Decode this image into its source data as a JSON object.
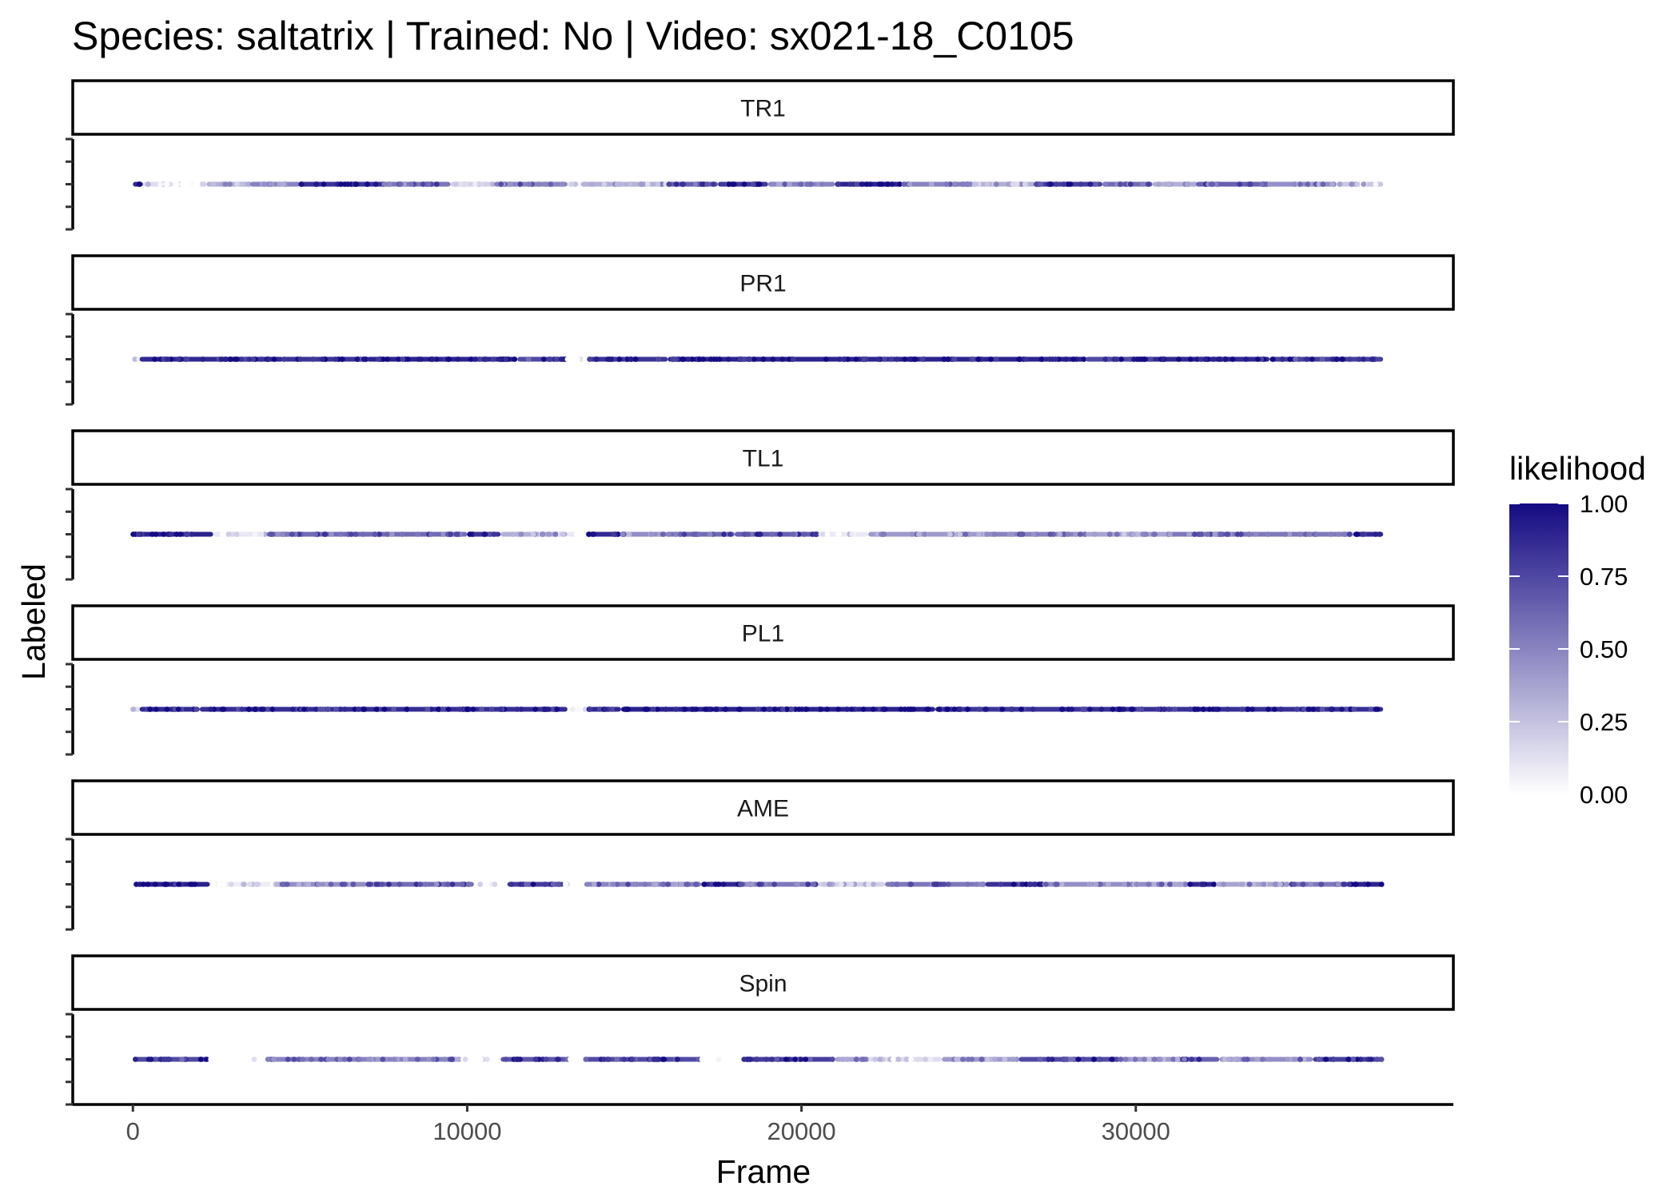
{
  "chart_data": {
    "type": "scatter",
    "title": "Species: saltatrix | Trained: No | Video: sx021-18_C0105",
    "xlabel": "Frame",
    "ylabel": "Labeled",
    "xlim": [
      -1800,
      39500
    ],
    "x_ticks": [
      0,
      10000,
      20000,
      30000
    ],
    "x_tick_labels": [
      "0",
      "10000",
      "20000",
      "30000"
    ],
    "frame_max": 37400,
    "color_scale": {
      "name": "likelihood",
      "low_color": "#ffffff",
      "high_color": "#140a82",
      "min": 0,
      "max": 1,
      "breaks": [
        0,
        0.25,
        0.5,
        0.75,
        1
      ],
      "break_labels": [
        "0.00",
        "0.25",
        "0.50",
        "0.75",
        "1.00"
      ]
    },
    "facets": [
      {
        "label": "TR1",
        "segments": [
          [
            0,
            300,
            0.95
          ],
          [
            300,
            1200,
            0.15
          ],
          [
            1200,
            2200,
            0.02
          ],
          [
            2200,
            3500,
            0.35
          ],
          [
            3500,
            5000,
            0.55
          ],
          [
            5000,
            7500,
            0.9
          ],
          [
            7500,
            9500,
            0.6
          ],
          [
            9500,
            10800,
            0.2
          ],
          [
            10800,
            13000,
            0.55
          ],
          [
            13000,
            13400,
            0.05
          ],
          [
            13400,
            16000,
            0.35
          ],
          [
            16000,
            17500,
            0.7
          ],
          [
            17500,
            19000,
            0.88
          ],
          [
            19000,
            21000,
            0.55
          ],
          [
            21000,
            23000,
            0.97
          ],
          [
            23000,
            25000,
            0.55
          ],
          [
            25000,
            27000,
            0.35
          ],
          [
            27000,
            29000,
            0.85
          ],
          [
            29000,
            30500,
            0.65
          ],
          [
            30500,
            31800,
            0.35
          ],
          [
            31800,
            34000,
            0.7
          ],
          [
            34000,
            36000,
            0.5
          ],
          [
            36000,
            37400,
            0.25
          ]
        ]
      },
      {
        "label": "PR1",
        "segments": [
          [
            0,
            200,
            0.15
          ],
          [
            200,
            4500,
            0.95
          ],
          [
            4500,
            7000,
            0.9
          ],
          [
            7000,
            11500,
            0.97
          ],
          [
            11500,
            13000,
            0.8
          ],
          [
            13000,
            13600,
            0.0
          ],
          [
            13600,
            16000,
            0.9
          ],
          [
            16000,
            28500,
            0.97
          ],
          [
            28500,
            30000,
            0.8
          ],
          [
            30000,
            34000,
            0.95
          ],
          [
            34000,
            37400,
            0.85
          ]
        ]
      },
      {
        "label": "TL1",
        "segments": [
          [
            0,
            2400,
            0.98
          ],
          [
            2400,
            4000,
            0.1
          ],
          [
            4000,
            10000,
            0.65
          ],
          [
            10000,
            11000,
            0.9
          ],
          [
            11000,
            13000,
            0.35
          ],
          [
            13000,
            13600,
            0.1
          ],
          [
            13600,
            14600,
            0.95
          ],
          [
            14600,
            16000,
            0.5
          ],
          [
            16000,
            18000,
            0.65
          ],
          [
            18000,
            20500,
            0.7
          ],
          [
            20500,
            22000,
            0.1
          ],
          [
            22000,
            25500,
            0.45
          ],
          [
            25500,
            28500,
            0.55
          ],
          [
            28500,
            31000,
            0.4
          ],
          [
            31000,
            36500,
            0.6
          ],
          [
            36500,
            37400,
            0.95
          ]
        ]
      },
      {
        "label": "PL1",
        "segments": [
          [
            0,
            200,
            0.2
          ],
          [
            200,
            2000,
            0.95
          ],
          [
            2000,
            13000,
            0.93
          ],
          [
            13000,
            13600,
            0.0
          ],
          [
            13600,
            14600,
            0.96
          ],
          [
            14600,
            24000,
            0.98
          ],
          [
            24000,
            28500,
            0.9
          ],
          [
            28500,
            37400,
            0.92
          ]
        ]
      },
      {
        "label": "AME",
        "segments": [
          [
            100,
            2300,
            0.98
          ],
          [
            2300,
            4300,
            0.08
          ],
          [
            4300,
            7000,
            0.5
          ],
          [
            7000,
            10200,
            0.65
          ],
          [
            10200,
            11200,
            0.0
          ],
          [
            11200,
            12900,
            0.85
          ],
          [
            12900,
            13500,
            0.0
          ],
          [
            13500,
            17000,
            0.55
          ],
          [
            17000,
            18200,
            0.95
          ],
          [
            18200,
            20500,
            0.6
          ],
          [
            20500,
            22500,
            0.2
          ],
          [
            22500,
            25500,
            0.6
          ],
          [
            25500,
            27200,
            0.92
          ],
          [
            27200,
            31600,
            0.5
          ],
          [
            31600,
            32400,
            0.95
          ],
          [
            32400,
            34600,
            0.4
          ],
          [
            34600,
            36300,
            0.6
          ],
          [
            36300,
            37400,
            0.97
          ]
        ]
      },
      {
        "label": "Spin",
        "segments": [
          [
            0,
            2300,
            0.8
          ],
          [
            2300,
            4000,
            0.0
          ],
          [
            4000,
            9800,
            0.55
          ],
          [
            9800,
            11000,
            0.0
          ],
          [
            11000,
            13000,
            0.75
          ],
          [
            13000,
            13500,
            0.0
          ],
          [
            13500,
            17000,
            0.8
          ],
          [
            17000,
            18200,
            0.0
          ],
          [
            18200,
            21000,
            0.85
          ],
          [
            21000,
            22000,
            0.4
          ],
          [
            22000,
            24200,
            0.15
          ],
          [
            24200,
            26500,
            0.45
          ],
          [
            26500,
            29500,
            0.8
          ],
          [
            29500,
            31400,
            0.45
          ],
          [
            31400,
            32500,
            0.7
          ],
          [
            32500,
            35300,
            0.5
          ],
          [
            35300,
            37400,
            0.85
          ]
        ]
      }
    ]
  }
}
